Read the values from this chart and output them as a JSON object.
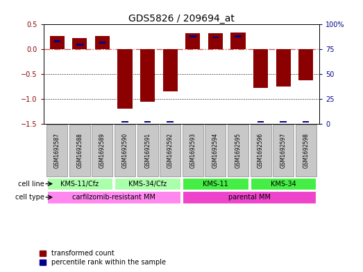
{
  "title": "GDS5826 / 209694_at",
  "samples": [
    "GSM1692587",
    "GSM1692588",
    "GSM1692589",
    "GSM1692590",
    "GSM1692591",
    "GSM1692592",
    "GSM1692593",
    "GSM1692594",
    "GSM1692595",
    "GSM1692596",
    "GSM1692597",
    "GSM1692598"
  ],
  "transformed_count": [
    0.27,
    0.22,
    0.27,
    -1.2,
    -1.05,
    -0.85,
    0.32,
    0.32,
    0.34,
    -0.78,
    -0.75,
    -0.62
  ],
  "percentile_rank": [
    83,
    80,
    82,
    2,
    2,
    2,
    88,
    87,
    88,
    2,
    2,
    2
  ],
  "bar_color": "#8B0000",
  "percentile_color": "#00008B",
  "zero_line_color": "#CD5C5C",
  "dotted_line_color": "#000000",
  "background_color": "#ffffff",
  "ylim_left": [
    -1.5,
    0.5
  ],
  "ylim_right": [
    0,
    100
  ],
  "yticks_left": [
    -1.5,
    -1.0,
    -0.5,
    0.0,
    0.5
  ],
  "yticks_right": [
    0,
    25,
    50,
    75,
    100
  ],
  "cell_lines": [
    {
      "label": "KMS-11/Cfz",
      "start": 0,
      "end": 3,
      "color": "#aaffaa"
    },
    {
      "label": "KMS-34/Cfz",
      "start": 3,
      "end": 6,
      "color": "#aaffaa"
    },
    {
      "label": "KMS-11",
      "start": 6,
      "end": 9,
      "color": "#44ee44"
    },
    {
      "label": "KMS-34",
      "start": 9,
      "end": 12,
      "color": "#44ee44"
    }
  ],
  "cell_types": [
    {
      "label": "carfilzomib-resistant MM",
      "start": 0,
      "end": 6,
      "color": "#ff88ee"
    },
    {
      "label": "parental MM",
      "start": 6,
      "end": 12,
      "color": "#ee44cc"
    }
  ],
  "legend_items": [
    {
      "label": "transformed count",
      "color": "#8B0000"
    },
    {
      "label": "percentile rank within the sample",
      "color": "#00008B"
    }
  ],
  "sample_label_color": "#c8c8c8",
  "sample_label_edge": "#888888"
}
